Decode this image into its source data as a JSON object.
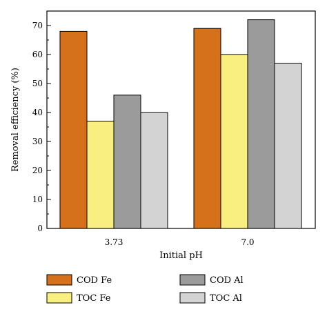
{
  "chart_data": {
    "type": "bar",
    "title": "",
    "xlabel": "Initial pH",
    "ylabel": "Removal efficiency (%)",
    "categories": [
      "3.73",
      "7.0"
    ],
    "ylim": [
      0,
      75
    ],
    "yticks": [
      0,
      10,
      20,
      30,
      40,
      50,
      60,
      70
    ],
    "grid": false,
    "legend_position": "bottom",
    "series": [
      {
        "name": "COD Fe",
        "values": [
          68,
          69
        ],
        "color": "#d4711a"
      },
      {
        "name": "TOC Fe",
        "values": [
          37,
          60
        ],
        "color": "#f9ef80"
      },
      {
        "name": "COD Al",
        "values": [
          46,
          72
        ],
        "color": "#9b9b9b"
      },
      {
        "name": "TOC Al",
        "values": [
          40,
          57
        ],
        "color": "#d3d3d3"
      }
    ]
  }
}
